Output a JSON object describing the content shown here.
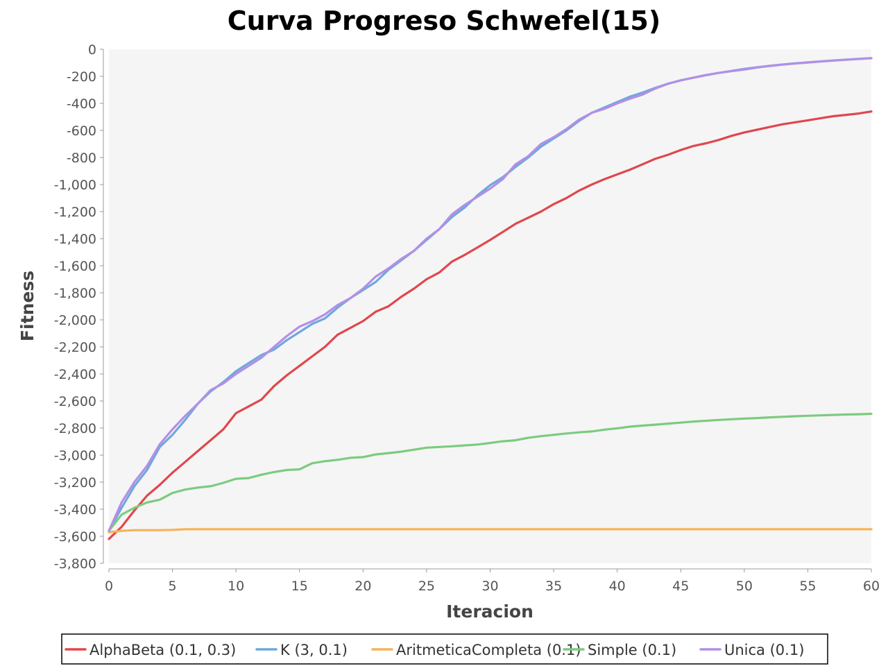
{
  "chart_data": {
    "type": "line",
    "title": "Curva Progreso Schwefel(15)",
    "xlabel": "Iteracion",
    "ylabel": "Fitness",
    "xlim": [
      0,
      60
    ],
    "ylim": [
      -3800,
      0
    ],
    "xticks": [
      0,
      5,
      10,
      15,
      20,
      25,
      30,
      35,
      40,
      45,
      50,
      55,
      60
    ],
    "yticks": [
      0,
      -200,
      -400,
      -600,
      -800,
      -1000,
      -1200,
      -1400,
      -1600,
      -1800,
      -2000,
      -2200,
      -2400,
      -2600,
      -2800,
      -3000,
      -3200,
      -3400,
      -3600,
      -3800
    ],
    "ytick_labels": [
      "0",
      "-200",
      "-400",
      "-600",
      "-800",
      "-1,000",
      "-1,200",
      "-1,400",
      "-1,600",
      "-1,800",
      "-2,000",
      "-2,200",
      "-2,400",
      "-2,600",
      "-2,800",
      "-3,000",
      "-3,200",
      "-3,400",
      "-3,600",
      "-3,800"
    ],
    "legend_position": "bottom",
    "grid": false,
    "x": [
      0,
      1,
      2,
      3,
      4,
      5,
      6,
      7,
      8,
      9,
      10,
      11,
      12,
      13,
      14,
      15,
      16,
      17,
      18,
      19,
      20,
      21,
      22,
      23,
      24,
      25,
      26,
      27,
      28,
      29,
      30,
      31,
      32,
      33,
      34,
      35,
      36,
      37,
      38,
      39,
      40,
      41,
      42,
      43,
      44,
      45,
      46,
      47,
      48,
      49,
      50,
      51,
      52,
      53,
      54,
      55,
      56,
      57,
      58,
      59,
      60
    ],
    "series": [
      {
        "name": "AlphaBeta (0.1, 0.3)",
        "color": "#e0474c",
        "values": [
          -3620,
          -3530,
          -3410,
          -3300,
          -3220,
          -3130,
          -3050,
          -2970,
          -2890,
          -2810,
          -2690,
          -2640,
          -2590,
          -2490,
          -2410,
          -2340,
          -2270,
          -2200,
          -2110,
          -2060,
          -2010,
          -1940,
          -1900,
          -1830,
          -1770,
          -1700,
          -1650,
          -1570,
          -1520,
          -1465,
          -1410,
          -1350,
          -1290,
          -1245,
          -1200,
          -1145,
          -1100,
          -1045,
          -1000,
          -960,
          -925,
          -890,
          -850,
          -810,
          -780,
          -745,
          -715,
          -695,
          -670,
          -640,
          -615,
          -595,
          -575,
          -555,
          -540,
          -525,
          -510,
          -495,
          -485,
          -475,
          -460
        ]
      },
      {
        "name": "K (3, 0.1)",
        "color": "#6fa8dc",
        "values": [
          -3560,
          -3390,
          -3230,
          -3110,
          -2940,
          -2850,
          -2740,
          -2620,
          -2530,
          -2460,
          -2380,
          -2320,
          -2260,
          -2220,
          -2150,
          -2090,
          -2030,
          -1990,
          -1910,
          -1840,
          -1780,
          -1720,
          -1630,
          -1560,
          -1490,
          -1410,
          -1330,
          -1240,
          -1170,
          -1080,
          -1005,
          -945,
          -870,
          -800,
          -720,
          -660,
          -600,
          -530,
          -470,
          -430,
          -390,
          -350,
          -320,
          -285,
          -255,
          -230,
          -210,
          -190,
          -175,
          -160,
          -145,
          -133,
          -122,
          -113,
          -104,
          -97,
          -90,
          -83,
          -77,
          -71,
          -66
        ]
      },
      {
        "name": "AritmeticaCompleta (0.1)",
        "color": "#f6b25a",
        "values": [
          -3570,
          -3560,
          -3555,
          -3555,
          -3555,
          -3553,
          -3548,
          -3548,
          -3548,
          -3548,
          -3548,
          -3548,
          -3548,
          -3548,
          -3548,
          -3548,
          -3548,
          -3548,
          -3548,
          -3548,
          -3548,
          -3548,
          -3548,
          -3548,
          -3548,
          -3548,
          -3548,
          -3548,
          -3548,
          -3548,
          -3548,
          -3548,
          -3548,
          -3548,
          -3548,
          -3548,
          -3548,
          -3548,
          -3548,
          -3548,
          -3548,
          -3548,
          -3548,
          -3548,
          -3548,
          -3548,
          -3548,
          -3548,
          -3548,
          -3548,
          -3548,
          -3548,
          -3548,
          -3548,
          -3548,
          -3548,
          -3548,
          -3548,
          -3548,
          -3548,
          -3548
        ]
      },
      {
        "name": "Simple (0.1)",
        "color": "#7ccb7f",
        "values": [
          -3560,
          -3440,
          -3390,
          -3350,
          -3330,
          -3280,
          -3255,
          -3240,
          -3230,
          -3205,
          -3175,
          -3170,
          -3145,
          -3125,
          -3110,
          -3105,
          -3060,
          -3045,
          -3035,
          -3020,
          -3015,
          -2995,
          -2985,
          -2975,
          -2960,
          -2945,
          -2940,
          -2935,
          -2928,
          -2922,
          -2910,
          -2898,
          -2890,
          -2872,
          -2860,
          -2850,
          -2840,
          -2832,
          -2825,
          -2812,
          -2802,
          -2790,
          -2782,
          -2775,
          -2767,
          -2760,
          -2752,
          -2746,
          -2740,
          -2735,
          -2730,
          -2726,
          -2721,
          -2717,
          -2713,
          -2709,
          -2706,
          -2703,
          -2700,
          -2698,
          -2695
        ]
      },
      {
        "name": "Unica (0.1)",
        "color": "#b38fe6",
        "values": [
          -3560,
          -3350,
          -3200,
          -3080,
          -2920,
          -2810,
          -2710,
          -2620,
          -2520,
          -2470,
          -2400,
          -2340,
          -2280,
          -2200,
          -2120,
          -2050,
          -2010,
          -1960,
          -1890,
          -1840,
          -1770,
          -1680,
          -1620,
          -1550,
          -1490,
          -1400,
          -1330,
          -1220,
          -1150,
          -1090,
          -1030,
          -960,
          -850,
          -790,
          -700,
          -650,
          -590,
          -520,
          -470,
          -440,
          -400,
          -365,
          -335,
          -290,
          -255,
          -230,
          -210,
          -192,
          -175,
          -162,
          -150,
          -135,
          -124,
          -114,
          -105,
          -98,
          -91,
          -84,
          -78,
          -72,
          -66
        ]
      }
    ]
  }
}
